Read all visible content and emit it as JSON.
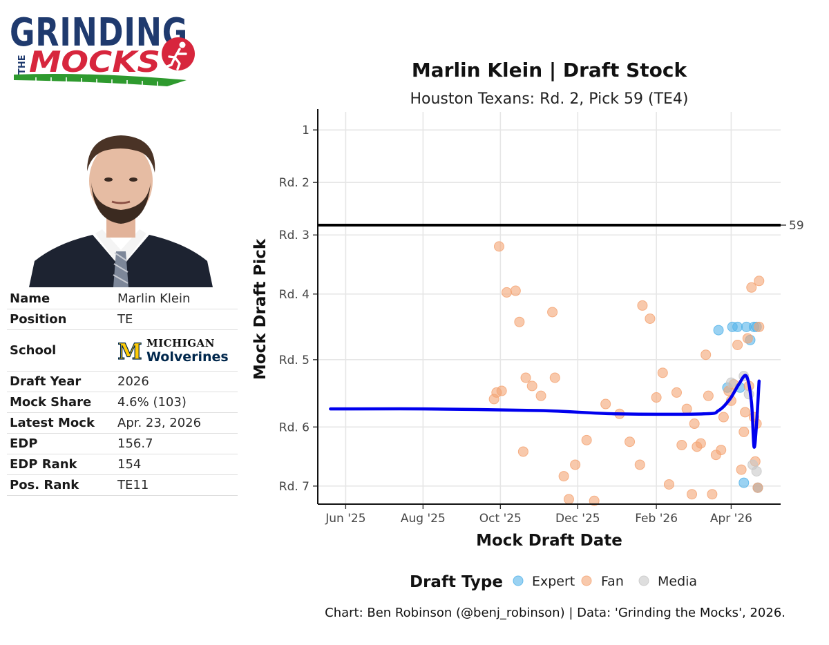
{
  "logo": {
    "line1": "GRINDING",
    "line2_small": "THE",
    "line2": "MOCKS"
  },
  "player_table": [
    {
      "key": "Name",
      "value": "Marlin Klein"
    },
    {
      "key": "Position",
      "value": "TE"
    },
    {
      "key": "School",
      "value": ""
    },
    {
      "key": "Draft Year",
      "value": "2026"
    },
    {
      "key": "Mock Share",
      "value": "4.6% (103)"
    },
    {
      "key": "Latest Mock",
      "value": "Apr. 23, 2026"
    },
    {
      "key": "EDP",
      "value": "156.7"
    },
    {
      "key": "EDP Rank",
      "value": "154"
    },
    {
      "key": "Pos. Rank",
      "value": "TE11"
    }
  ],
  "school": {
    "line1": "Michigan",
    "line2": "Wolverines",
    "block_m": "M"
  },
  "colors": {
    "expert": "#56b4e9",
    "fan": "#f4a574",
    "media": "#c8c8c8",
    "trend": "#0000ee",
    "pick_line": "#000000",
    "maize": "#ffcb05",
    "blue": "#00274c",
    "logo_navy": "#1f3a6e",
    "logo_red": "#d7263d",
    "logo_green": "#2e9a2e"
  },
  "chart_data": {
    "type": "scatter",
    "title": "Marlin Klein | Draft Stock",
    "subtitle": "Houston Texans: Rd. 2, Pick 59 (TE4)",
    "xlabel": "Mock Draft Date",
    "ylabel": "Mock Draft Pick",
    "x_ticks": [
      {
        "date": "2025-06-01",
        "label": "Jun '25"
      },
      {
        "date": "2025-08-01",
        "label": "Aug '25"
      },
      {
        "date": "2025-10-01",
        "label": "Oct '25"
      },
      {
        "date": "2025-12-01",
        "label": "Dec '25"
      },
      {
        "date": "2026-02-01",
        "label": "Feb '26"
      },
      {
        "date": "2026-04-01",
        "label": "Apr '26"
      }
    ],
    "y_ticks": [
      {
        "pick": 1,
        "label": "1"
      },
      {
        "pick": 33,
        "label": "Rd. 2"
      },
      {
        "pick": 65,
        "label": "Rd. 3"
      },
      {
        "pick": 101,
        "label": "Rd. 4"
      },
      {
        "pick": 141,
        "label": "Rd. 5"
      },
      {
        "pick": 182,
        "label": "Rd. 6"
      },
      {
        "pick": 218,
        "label": "Rd. 7"
      }
    ],
    "xlim": [
      "2025-05-10",
      "2026-05-10"
    ],
    "ylim": [
      229,
      -10
    ],
    "y_reversed": true,
    "reference_line": {
      "pick": 59,
      "label": "59"
    },
    "legend": {
      "title": "Draft Type",
      "position": "bottom",
      "entries": [
        "Expert",
        "Fan",
        "Media"
      ]
    },
    "series": [
      {
        "name": "Expert",
        "points": [
          [
            "2026-03-22",
            123
          ],
          [
            "2026-03-29",
            158
          ],
          [
            "2026-04-02",
            121
          ],
          [
            "2026-04-06",
            121
          ],
          [
            "2026-04-08",
            158
          ],
          [
            "2026-04-11",
            216
          ],
          [
            "2026-04-13",
            121
          ],
          [
            "2026-04-16",
            129
          ],
          [
            "2026-04-19",
            121
          ],
          [
            "2026-04-21",
            121
          ],
          [
            "2026-04-22",
            219
          ]
        ]
      },
      {
        "name": "Fan",
        "points": [
          [
            "2025-09-26",
            165
          ],
          [
            "2025-09-28",
            161
          ],
          [
            "2025-09-30",
            72
          ],
          [
            "2025-10-02",
            160
          ],
          [
            "2025-10-06",
            100
          ],
          [
            "2025-10-13",
            99
          ],
          [
            "2025-10-16",
            118
          ],
          [
            "2025-10-19",
            197
          ],
          [
            "2025-10-21",
            152
          ],
          [
            "2025-10-26",
            157
          ],
          [
            "2025-11-02",
            163
          ],
          [
            "2025-11-11",
            112
          ],
          [
            "2025-11-13",
            152
          ],
          [
            "2025-11-20",
            212
          ],
          [
            "2025-11-24",
            226
          ],
          [
            "2025-11-29",
            205
          ],
          [
            "2025-12-08",
            190
          ],
          [
            "2025-12-14",
            227
          ],
          [
            "2025-12-23",
            168
          ],
          [
            "2026-01-03",
            174
          ],
          [
            "2026-01-11",
            191
          ],
          [
            "2026-01-19",
            205
          ],
          [
            "2026-01-21",
            108
          ],
          [
            "2026-01-27",
            116
          ],
          [
            "2026-02-01",
            164
          ],
          [
            "2026-02-06",
            149
          ],
          [
            "2026-02-11",
            217
          ],
          [
            "2026-02-17",
            161
          ],
          [
            "2026-02-21",
            193
          ],
          [
            "2026-02-25",
            171
          ],
          [
            "2026-03-01",
            223
          ],
          [
            "2026-03-03",
            180
          ],
          [
            "2026-03-05",
            194
          ],
          [
            "2026-03-08",
            192
          ],
          [
            "2026-03-12",
            138
          ],
          [
            "2026-03-14",
            163
          ],
          [
            "2026-03-17",
            223
          ],
          [
            "2026-03-20",
            199
          ],
          [
            "2026-03-24",
            196
          ],
          [
            "2026-03-26",
            176
          ],
          [
            "2026-03-30",
            160
          ],
          [
            "2026-04-01",
            166
          ],
          [
            "2026-04-03",
            156
          ],
          [
            "2026-04-06",
            132
          ],
          [
            "2026-04-09",
            208
          ],
          [
            "2026-04-11",
            185
          ],
          [
            "2026-04-12",
            173
          ],
          [
            "2026-04-14",
            128
          ],
          [
            "2026-04-15",
            157
          ],
          [
            "2026-04-17",
            97
          ],
          [
            "2026-04-19",
            176
          ],
          [
            "2026-04-20",
            203
          ],
          [
            "2026-04-21",
            180
          ],
          [
            "2026-04-22",
            219
          ],
          [
            "2026-04-23",
            121
          ],
          [
            "2026-04-23",
            93
          ]
        ]
      },
      {
        "name": "Media",
        "points": [
          [
            "2026-04-01",
            155
          ],
          [
            "2026-04-11",
            151
          ],
          [
            "2026-04-15",
            162
          ],
          [
            "2026-04-18",
            205
          ],
          [
            "2026-04-21",
            209
          ]
        ]
      }
    ],
    "trend": {
      "name": "Trend",
      "points": [
        [
          "2025-05-20",
          171
        ],
        [
          "2025-08-01",
          171
        ],
        [
          "2025-11-01",
          172
        ],
        [
          "2026-01-01",
          174
        ],
        [
          "2026-03-10",
          174
        ],
        [
          "2026-03-22",
          172
        ],
        [
          "2026-03-31",
          165
        ],
        [
          "2026-04-07",
          156
        ],
        [
          "2026-04-13",
          151
        ],
        [
          "2026-04-17",
          167
        ],
        [
          "2026-04-19",
          194
        ],
        [
          "2026-04-21",
          180
        ],
        [
          "2026-04-23",
          154
        ]
      ]
    }
  },
  "caption": "Chart: Ben Robinson (@benj_robinson) | Data: 'Grinding the Mocks', 2026."
}
